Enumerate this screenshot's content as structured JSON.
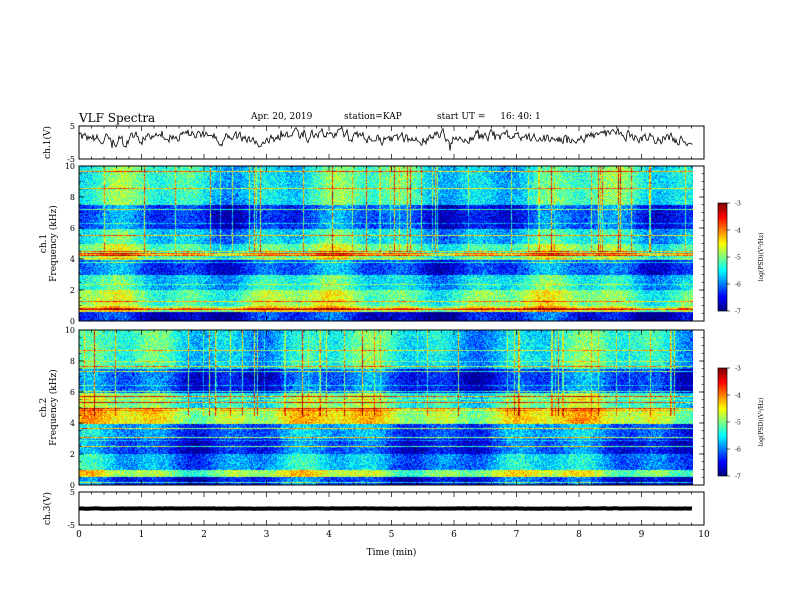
{
  "header": {
    "title": "VLF Spectra",
    "date": "Apr. 20, 2019",
    "station_label": "station=",
    "station": "KAP",
    "start_label": "start UT =",
    "start_time": "16: 40: 1"
  },
  "chart_data": [
    {
      "id": "ch1-waveform",
      "type": "line",
      "ylabel": "ch.1(V)",
      "ylim": [
        -5,
        5
      ],
      "yticks": [
        "5",
        "-5"
      ],
      "xlim": [
        0,
        10
      ],
      "x_end": 9.82,
      "baseline": 1.6,
      "amplitude": 1.9,
      "color": "#000000"
    },
    {
      "id": "ch1-spectrogram",
      "type": "heatmap",
      "ylabel": "ch.1\nFrequency (kHz)",
      "ylim": [
        0,
        10
      ],
      "yticks": [
        "0",
        "2",
        "4",
        "6",
        "8",
        "10"
      ],
      "xlim": [
        0,
        10
      ],
      "x_end": 9.82,
      "colorbar": {
        "label": "log(PSD)(V²/Hz)",
        "range": [
          -7,
          -3
        ],
        "ticks": [
          "-3",
          "-4",
          "-5",
          "-6",
          "-7"
        ]
      },
      "bands_kHz": [
        {
          "from": 0,
          "to": 0.6,
          "level": -6.5
        },
        {
          "from": 0.6,
          "to": 1.0,
          "level": -4.6
        },
        {
          "from": 1.0,
          "to": 2.0,
          "level": -5.0
        },
        {
          "from": 2.0,
          "to": 3.0,
          "level": -5.5
        },
        {
          "from": 3.0,
          "to": 4.0,
          "level": -6.2
        },
        {
          "from": 4.0,
          "to": 5.0,
          "level": -5.1
        },
        {
          "from": 5.0,
          "to": 6.0,
          "level": -5.6
        },
        {
          "from": 6.0,
          "to": 7.5,
          "level": -6.3
        },
        {
          "from": 7.5,
          "to": 10.0,
          "level": -5.4
        }
      ]
    },
    {
      "id": "ch2-spectrogram",
      "type": "heatmap",
      "ylabel": "ch.2\nFrequency (kHz)",
      "ylim": [
        0,
        10
      ],
      "yticks": [
        "0",
        "2",
        "4",
        "6",
        "8",
        "10"
      ],
      "xlim": [
        0,
        10
      ],
      "x_end": 9.82,
      "colorbar": {
        "label": "log(PSD)(V²/Hz)",
        "range": [
          -7,
          -3
        ],
        "ticks": [
          "-3",
          "-4",
          "-5",
          "-6",
          "-7"
        ]
      },
      "bands_kHz": [
        {
          "from": 0,
          "to": 0.6,
          "level": -6.4
        },
        {
          "from": 0.6,
          "to": 1.0,
          "level": -4.8
        },
        {
          "from": 1.0,
          "to": 2.0,
          "level": -5.8
        },
        {
          "from": 2.0,
          "to": 3.0,
          "level": -6.3
        },
        {
          "from": 3.0,
          "to": 4.0,
          "level": -6.0
        },
        {
          "from": 4.0,
          "to": 5.0,
          "level": -4.6
        },
        {
          "from": 5.0,
          "to": 6.0,
          "level": -5.2
        },
        {
          "from": 6.0,
          "to": 7.5,
          "level": -6.3
        },
        {
          "from": 7.5,
          "to": 10.0,
          "level": -5.5
        }
      ]
    },
    {
      "id": "ch3-waveform",
      "type": "line",
      "ylabel": "ch.3(V)",
      "ylim": [
        -5,
        5
      ],
      "yticks": [
        "5",
        "-5"
      ],
      "xlim": [
        0,
        10
      ],
      "x_end": 9.82,
      "baseline": 0,
      "amplitude": 0.05,
      "color": "#000000"
    }
  ],
  "xaxis": {
    "label": "Time (min)",
    "ticks": [
      "0",
      "1",
      "2",
      "3",
      "4",
      "5",
      "6",
      "7",
      "8",
      "9",
      "10"
    ]
  },
  "colors": {
    "axis": "#000000",
    "background": "#ffffff"
  }
}
